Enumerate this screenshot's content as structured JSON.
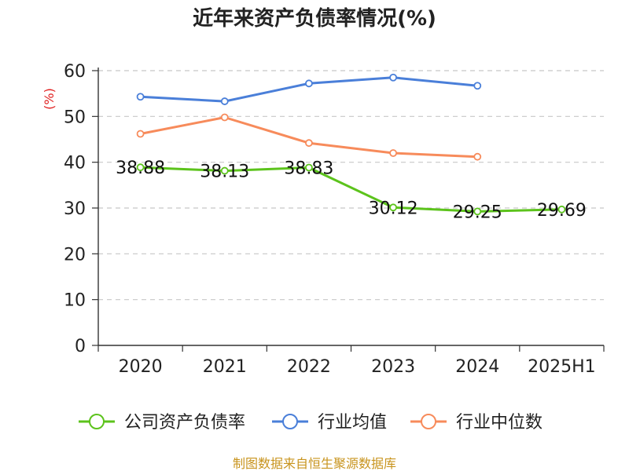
{
  "chart_data": {
    "type": "line",
    "title": "近年来资产负债率情况(%)",
    "ylabel": "(%)",
    "ylim": [
      0,
      60
    ],
    "yticks": [
      0,
      10,
      20,
      30,
      40,
      50,
      60
    ],
    "categories": [
      "2020",
      "2021",
      "2022",
      "2023",
      "2024",
      "2025H1"
    ],
    "grid": true,
    "legend_position": "bottom",
    "series": [
      {
        "name": "公司资产负债率",
        "color": "#5cc31c",
        "values": [
          38.88,
          38.13,
          38.83,
          30.12,
          29.25,
          29.69
        ],
        "show_labels": true
      },
      {
        "name": "行业均值",
        "color": "#4a7fd9",
        "values": [
          54.3,
          53.3,
          57.2,
          58.5,
          56.7,
          null
        ],
        "show_labels": false
      },
      {
        "name": "行业中位数",
        "color": "#f78b5b",
        "values": [
          46.2,
          49.8,
          44.2,
          42.0,
          41.2,
          null
        ],
        "show_labels": false
      }
    ],
    "ylabel_color": "#e02020"
  },
  "source": {
    "text": "制图数据来自恒生聚源数据库",
    "color": "#c8941e"
  }
}
